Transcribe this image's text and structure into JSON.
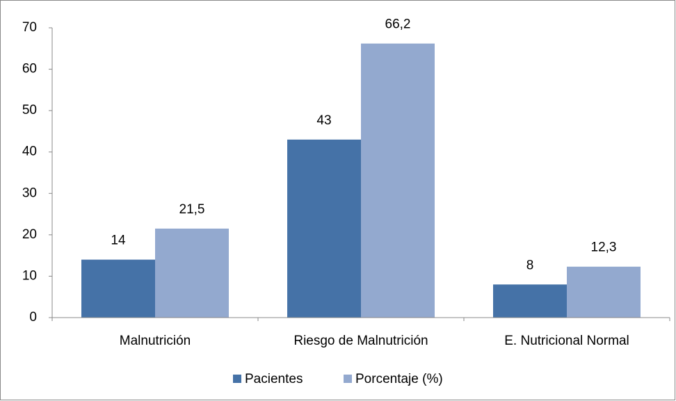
{
  "chart_data": {
    "type": "bar",
    "categories": [
      "Malnutrición",
      "Riesgo de Malnutrición",
      "E. Nutricional Normal"
    ],
    "series": [
      {
        "name": "Pacientes",
        "color": "#4572a7",
        "values": [
          14,
          43,
          8
        ]
      },
      {
        "name": "Porcentaje (%)",
        "color": "#93a9cf",
        "values": [
          21.5,
          66.2,
          12.3
        ],
        "value_labels": [
          "21,5",
          "66,2",
          "12,3"
        ]
      }
    ],
    "ylim": [
      0,
      70
    ],
    "yticks": [
      0,
      10,
      20,
      30,
      40,
      50,
      60,
      70
    ],
    "grid": false,
    "legend": "bottom"
  }
}
